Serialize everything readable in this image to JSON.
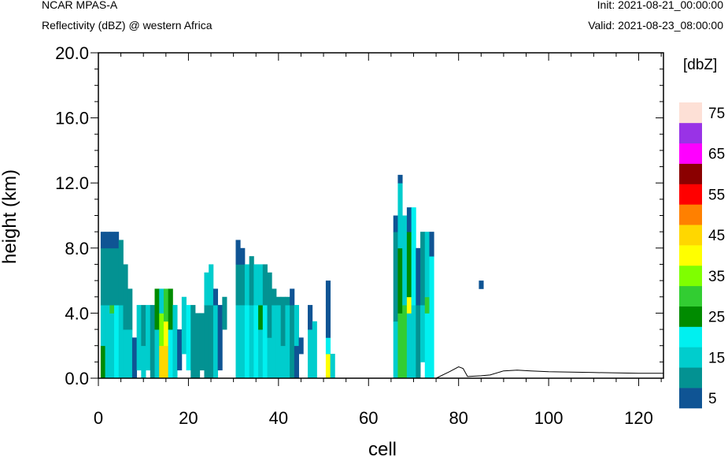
{
  "header": {
    "model": "NCAR MPAS-A",
    "field": "Reflectivity (dBZ) @ western Africa",
    "init": "Init: 2021-08-21_00:00:00",
    "valid": "Valid: 2021-08-23_08:00:00"
  },
  "chart_data": {
    "type": "heatmap",
    "xlabel": "cell",
    "ylabel": "height (km)",
    "xlim": [
      0,
      125.5
    ],
    "ylim": [
      0,
      20
    ],
    "xticks": [
      "0",
      "20",
      "40",
      "60",
      "80",
      "100",
      "120"
    ],
    "yticks": [
      "0.0",
      "4.0",
      "8.0",
      "12.0",
      "16.0",
      "20.0"
    ],
    "colorbar": {
      "unit": "[dbZ]",
      "levels": [
        5,
        10,
        15,
        20,
        25,
        30,
        35,
        40,
        45,
        50,
        55,
        60,
        65,
        70,
        75
      ],
      "labels": [
        "5",
        "15",
        "25",
        "35",
        "45",
        "55",
        "65",
        "75"
      ],
      "colors": [
        "#0f5494",
        "#039292",
        "#00cdcd",
        "#00f0f0",
        "#008b00",
        "#32cd32",
        "#7fff00",
        "#ffff00",
        "#ffd700",
        "#ff8000",
        "#ff0000",
        "#8b0000",
        "#ff00ff",
        "#9933e6",
        "#fde0d6"
      ]
    },
    "cell_height_km": 0.5,
    "columns": [
      {
        "x": 1,
        "y0": 0,
        "y1": 9,
        "bands": [
          [
            0,
            2,
            "#008b00"
          ],
          [
            2,
            4.5,
            "#00cdcd"
          ],
          [
            4.5,
            8,
            "#039292"
          ],
          [
            8,
            9,
            "#0f5494"
          ]
        ]
      },
      {
        "x": 2,
        "y0": 0,
        "y1": 9,
        "bands": [
          [
            0,
            4.5,
            "#00cdcd"
          ],
          [
            4.5,
            8,
            "#039292"
          ],
          [
            8,
            9,
            "#0f5494"
          ]
        ]
      },
      {
        "x": 3,
        "y0": 0,
        "y1": 9,
        "bands": [
          [
            0,
            4,
            "#00cdcd"
          ],
          [
            4,
            4.5,
            "#32cd32"
          ],
          [
            4.5,
            8,
            "#039292"
          ],
          [
            8,
            9,
            "#0f5494"
          ]
        ]
      },
      {
        "x": 4,
        "y0": 0,
        "y1": 9,
        "bands": [
          [
            0,
            4.5,
            "#00f0f0"
          ],
          [
            4.5,
            8,
            "#039292"
          ],
          [
            8,
            9,
            "#0f5494"
          ]
        ]
      },
      {
        "x": 5,
        "y0": 0,
        "y1": 8.5,
        "bands": [
          [
            0,
            4.5,
            "#00cdcd"
          ],
          [
            4.5,
            8.5,
            "#039292"
          ]
        ]
      },
      {
        "x": 6,
        "y0": 0,
        "y1": 7,
        "bands": [
          [
            0,
            3,
            "#00cdcd"
          ],
          [
            3,
            7,
            "#039292"
          ]
        ]
      },
      {
        "x": 7,
        "y0": 0,
        "y1": 5.5,
        "bands": [
          [
            0,
            3,
            "#00cdcd"
          ],
          [
            3,
            5.5,
            "#039292"
          ]
        ]
      },
      {
        "x": 8,
        "y0": 0,
        "y1": 2.5,
        "bands": [
          [
            0,
            2.5,
            "#0f5494"
          ]
        ]
      },
      {
        "x": 9,
        "y0": 0.5,
        "y1": 4.5,
        "bands": [
          [
            0.5,
            4.5,
            "#00cdcd"
          ]
        ]
      },
      {
        "x": 10,
        "y0": 0,
        "y1": 4.5,
        "bands": [
          [
            0,
            2,
            "#00cdcd"
          ],
          [
            2,
            4.5,
            "#039292"
          ]
        ]
      },
      {
        "x": 11,
        "y0": 0.5,
        "y1": 4.5,
        "bands": [
          [
            0.5,
            4.5,
            "#00cdcd"
          ]
        ]
      },
      {
        "x": 12,
        "y0": 0,
        "y1": 4.5,
        "bands": [
          [
            0,
            4.5,
            "#039292"
          ]
        ]
      },
      {
        "x": 13,
        "y0": 0,
        "y1": 5.5,
        "bands": [
          [
            0,
            3,
            "#00cdcd"
          ],
          [
            3,
            5.5,
            "#008b00"
          ]
        ]
      },
      {
        "x": 14,
        "y0": 0,
        "y1": 5.5,
        "bands": [
          [
            0,
            2,
            "#ffd700"
          ],
          [
            2,
            4,
            "#7fff00"
          ],
          [
            4,
            5.5,
            "#00cdcd"
          ]
        ]
      },
      {
        "x": 15,
        "y0": 0,
        "y1": 5.5,
        "bands": [
          [
            0,
            2,
            "#ffd700"
          ],
          [
            2,
            3.5,
            "#ffff00"
          ],
          [
            3.5,
            5.5,
            "#32cd32"
          ]
        ]
      },
      {
        "x": 16,
        "y0": 0,
        "y1": 5.5,
        "bands": [
          [
            0,
            3,
            "#00f0f0"
          ],
          [
            3,
            5.5,
            "#008b00"
          ]
        ]
      },
      {
        "x": 17,
        "y0": 0,
        "y1": 4.5,
        "bands": [
          [
            0,
            4.5,
            "#00cdcd"
          ]
        ]
      },
      {
        "x": 18,
        "y0": 0.5,
        "y1": 3,
        "bands": [
          [
            0.5,
            3,
            "#0f5494"
          ]
        ]
      },
      {
        "x": 19,
        "y0": 1.5,
        "y1": 5,
        "bands": [
          [
            1.5,
            5,
            "#00cdcd"
          ]
        ]
      },
      {
        "x": 20,
        "y0": 0.5,
        "y1": 4.5,
        "bands": [
          [
            0.5,
            4.5,
            "#00f0f0"
          ]
        ]
      },
      {
        "x": 21,
        "y0": 0,
        "y1": 4.5,
        "bands": [
          [
            0,
            4.5,
            "#039292"
          ]
        ]
      },
      {
        "x": 22,
        "y0": 0,
        "y1": 4,
        "bands": [
          [
            0,
            4,
            "#039292"
          ]
        ]
      },
      {
        "x": 23,
        "y0": 0.5,
        "y1": 4,
        "bands": [
          [
            0.5,
            4,
            "#039292"
          ]
        ]
      },
      {
        "x": 24,
        "y0": 0,
        "y1": 6.5,
        "bands": [
          [
            0,
            4.5,
            "#039292"
          ],
          [
            4.5,
            6.5,
            "#00cdcd"
          ]
        ]
      },
      {
        "x": 25,
        "y0": 0,
        "y1": 7,
        "bands": [
          [
            0,
            4.5,
            "#039292"
          ],
          [
            4.5,
            7,
            "#00cdcd"
          ]
        ]
      },
      {
        "x": 26,
        "y0": 0,
        "y1": 5.5,
        "bands": [
          [
            0,
            4.5,
            "#00cdcd"
          ],
          [
            4.5,
            5.5,
            "#0f5494"
          ]
        ]
      },
      {
        "x": 27,
        "y0": 0.5,
        "y1": 4.5,
        "bands": [
          [
            0.5,
            4.5,
            "#0f5494"
          ]
        ]
      },
      {
        "x": 28,
        "y0": 3,
        "y1": 5,
        "bands": [
          [
            3,
            5,
            "#039292"
          ]
        ]
      },
      {
        "x": 31,
        "y0": 0,
        "y1": 8.5,
        "bands": [
          [
            0,
            4.5,
            "#00cdcd"
          ],
          [
            4.5,
            7,
            "#039292"
          ],
          [
            7,
            8.5,
            "#0f5494"
          ]
        ]
      },
      {
        "x": 32,
        "y0": 0,
        "y1": 8,
        "bands": [
          [
            0,
            4.5,
            "#00cdcd"
          ],
          [
            4.5,
            7,
            "#039292"
          ],
          [
            7,
            8,
            "#0f5494"
          ]
        ]
      },
      {
        "x": 33,
        "y0": 0,
        "y1": 7,
        "bands": [
          [
            0,
            4.5,
            "#00f0f0"
          ],
          [
            4.5,
            7,
            "#00cdcd"
          ]
        ]
      },
      {
        "x": 34,
        "y0": 0,
        "y1": 7.5,
        "bands": [
          [
            0,
            4.5,
            "#00cdcd"
          ],
          [
            4.5,
            7.5,
            "#039292"
          ]
        ]
      },
      {
        "x": 35,
        "y0": 0,
        "y1": 7,
        "bands": [
          [
            0,
            4.5,
            "#00f0f0"
          ],
          [
            4.5,
            7,
            "#00cdcd"
          ]
        ]
      },
      {
        "x": 36,
        "y0": 0,
        "y1": 7,
        "bands": [
          [
            0,
            3,
            "#00cdcd"
          ],
          [
            3,
            4.5,
            "#008b00"
          ],
          [
            4.5,
            7,
            "#00cdcd"
          ]
        ]
      },
      {
        "x": 37,
        "y0": 0,
        "y1": 7,
        "bands": [
          [
            0,
            4.5,
            "#00f0f0"
          ],
          [
            4.5,
            7,
            "#039292"
          ]
        ]
      },
      {
        "x": 38,
        "y0": 0,
        "y1": 6.5,
        "bands": [
          [
            0,
            2.5,
            "#00cdcd"
          ],
          [
            2.5,
            6.5,
            "#039292"
          ]
        ]
      },
      {
        "x": 39,
        "y0": 0,
        "y1": 5.5,
        "bands": [
          [
            0,
            4.5,
            "#00cdcd"
          ],
          [
            4.5,
            5.5,
            "#039292"
          ]
        ]
      },
      {
        "x": 40,
        "y0": 0,
        "y1": 5,
        "bands": [
          [
            0,
            4.5,
            "#00cdcd"
          ],
          [
            4.5,
            5,
            "#039292"
          ]
        ]
      },
      {
        "x": 41,
        "y0": 0,
        "y1": 5,
        "bands": [
          [
            0,
            2,
            "#00cdcd"
          ],
          [
            2,
            5,
            "#039292"
          ]
        ]
      },
      {
        "x": 42,
        "y0": 0,
        "y1": 5,
        "bands": [
          [
            0,
            4.5,
            "#00cdcd"
          ],
          [
            4.5,
            5,
            "#039292"
          ]
        ]
      },
      {
        "x": 43,
        "y0": 0,
        "y1": 5.5,
        "bands": [
          [
            0,
            4.5,
            "#039292"
          ],
          [
            4.5,
            5.5,
            "#0f5494"
          ]
        ]
      },
      {
        "x": 44,
        "y0": 0,
        "y1": 4.5,
        "bands": [
          [
            0,
            2,
            "#0f5494"
          ],
          [
            2,
            4.5,
            "#00cdcd"
          ]
        ]
      },
      {
        "x": 45,
        "y0": 1.5,
        "y1": 2.5,
        "bands": [
          [
            1.5,
            2.5,
            "#0f5494"
          ]
        ]
      },
      {
        "x": 47,
        "y0": 0,
        "y1": 4.5,
        "bands": [
          [
            0,
            3,
            "#00cdcd"
          ],
          [
            3,
            4.5,
            "#0f5494"
          ]
        ]
      },
      {
        "x": 48,
        "y0": 0,
        "y1": 3.5,
        "bands": [
          [
            0,
            3.5,
            "#00cdcd"
          ]
        ]
      },
      {
        "x": 51,
        "y0": 0,
        "y1": 6,
        "bands": [
          [
            0,
            1.5,
            "#ffff00"
          ],
          [
            1.5,
            2.5,
            "#00f0f0"
          ],
          [
            2.5,
            4.5,
            "#0f5494"
          ],
          [
            4.5,
            6,
            "#0f5494"
          ]
        ]
      },
      {
        "x": 52,
        "y0": 0,
        "y1": 1.5,
        "bands": [
          [
            0,
            1.5,
            "#00cdcd"
          ]
        ]
      },
      {
        "x": 66,
        "y0": 0,
        "y1": 10,
        "bands": [
          [
            0,
            3.5,
            "#00cdcd"
          ],
          [
            3.5,
            9,
            "#039292"
          ],
          [
            9,
            10,
            "#0f5494"
          ]
        ]
      },
      {
        "x": 67,
        "y0": 0,
        "y1": 12.5,
        "bands": [
          [
            0,
            4,
            "#32cd32"
          ],
          [
            4,
            8,
            "#008b00"
          ],
          [
            8,
            12,
            "#00cdcd"
          ],
          [
            12,
            12.5,
            "#0f5494"
          ]
        ]
      },
      {
        "x": 68,
        "y0": 0,
        "y1": 10,
        "bands": [
          [
            0,
            4.5,
            "#32cd32"
          ],
          [
            4.5,
            10,
            "#00cdcd"
          ]
        ]
      },
      {
        "x": 69,
        "y0": 0,
        "y1": 10.5,
        "bands": [
          [
            0,
            4,
            "#00cdcd"
          ],
          [
            4,
            5,
            "#ffff00"
          ],
          [
            5,
            9,
            "#008b00"
          ],
          [
            9,
            10.5,
            "#0f5494"
          ]
        ]
      },
      {
        "x": 70,
        "y0": 0,
        "y1": 10.5,
        "bands": [
          [
            0,
            4.5,
            "#00cdcd"
          ],
          [
            4.5,
            10.5,
            "#00f0f0"
          ]
        ]
      },
      {
        "x": 71,
        "y0": 0,
        "y1": 8,
        "bands": [
          [
            0,
            4.5,
            "#039292"
          ],
          [
            4.5,
            8,
            "#0f5494"
          ]
        ]
      },
      {
        "x": 72,
        "y0": 1,
        "y1": 9,
        "bands": [
          [
            1,
            4.5,
            "#00cdcd"
          ],
          [
            4.5,
            9,
            "#039292"
          ]
        ]
      },
      {
        "x": 73,
        "y0": 0,
        "y1": 9,
        "bands": [
          [
            0,
            4,
            "#00f0f0"
          ],
          [
            4,
            5,
            "#32cd32"
          ],
          [
            5,
            9,
            "#00cdcd"
          ]
        ]
      },
      {
        "x": 74,
        "y0": 0,
        "y1": 9,
        "bands": [
          [
            0,
            7.5,
            "#00f0f0"
          ],
          [
            7.5,
            9,
            "#0f5494"
          ]
        ]
      },
      {
        "x": 85,
        "y0": 5.5,
        "y1": 6,
        "bands": [
          [
            5.5,
            6,
            "#0f5494"
          ]
        ]
      }
    ],
    "terrain_km": [
      [
        0,
        0
      ],
      [
        48,
        0
      ],
      [
        75,
        0
      ],
      [
        78,
        0.4
      ],
      [
        80,
        0.7
      ],
      [
        81,
        0.6
      ],
      [
        82,
        0.1
      ],
      [
        85,
        0.15
      ],
      [
        87,
        0.2
      ],
      [
        90,
        0.45
      ],
      [
        93,
        0.5
      ],
      [
        96,
        0.45
      ],
      [
        100,
        0.4
      ],
      [
        110,
        0.35
      ],
      [
        120,
        0.3
      ],
      [
        125.5,
        0.3
      ]
    ]
  }
}
